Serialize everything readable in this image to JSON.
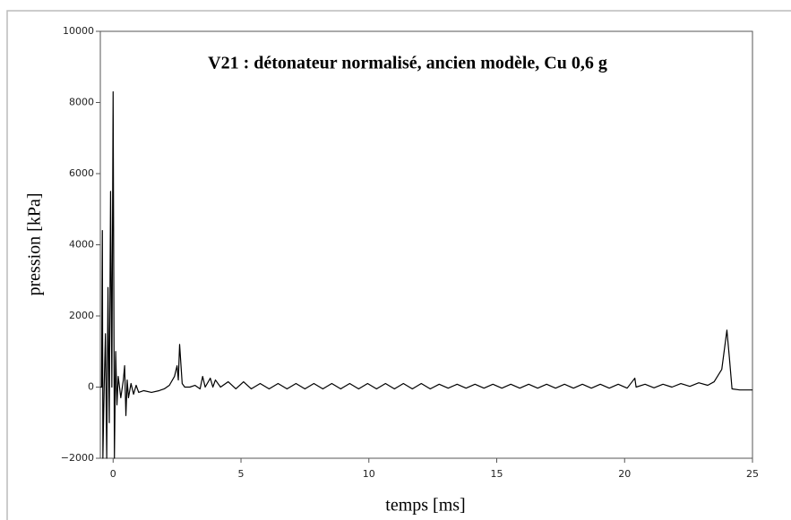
{
  "chart_data": {
    "type": "line",
    "title": "V21 : détonateur normalisé, ancien modèle, Cu 0,6 g",
    "x_label": "temps [ms]",
    "y_label": "pression [kPa]",
    "xlim": [
      -0.5,
      25
    ],
    "ylim": [
      -2000,
      10000
    ],
    "xticks": [
      0,
      5,
      10,
      15,
      20,
      25
    ],
    "yticks": [
      {
        "value": -2000,
        "label": "−2000"
      },
      0,
      2000,
      4000,
      6000,
      8000,
      10000
    ],
    "series": [
      {
        "color": "#000000",
        "x": [
          -0.5,
          -0.45,
          -0.42,
          -0.4,
          -0.35,
          -0.3,
          -0.25,
          -0.2,
          -0.15,
          -0.1,
          -0.05,
          0.0,
          0.05,
          0.1,
          0.15,
          0.2,
          0.3,
          0.4,
          0.45,
          0.5,
          0.55,
          0.6,
          0.7,
          0.8,
          0.9,
          1.0,
          1.2,
          1.5,
          1.8,
          2.0,
          2.2,
          2.4,
          2.5,
          2.55,
          2.6,
          2.7,
          2.8,
          3.0,
          3.2,
          3.4,
          3.5,
          3.6,
          3.8,
          3.9,
          4.0,
          4.2,
          4.5,
          4.8,
          5.1,
          5.4,
          5.75,
          6.1,
          6.45,
          6.8,
          7.15,
          7.5,
          7.85,
          8.2,
          8.55,
          8.9,
          9.25,
          9.6,
          9.95,
          10.3,
          10.65,
          11.0,
          11.35,
          11.7,
          12.05,
          12.4,
          12.75,
          13.1,
          13.45,
          13.8,
          14.15,
          14.5,
          14.85,
          15.2,
          15.55,
          15.9,
          16.25,
          16.6,
          16.95,
          17.3,
          17.65,
          18.0,
          18.35,
          18.7,
          19.05,
          19.4,
          19.75,
          20.1,
          20.4,
          20.45,
          20.8,
          21.15,
          21.5,
          21.85,
          22.2,
          22.55,
          22.9,
          23.25,
          23.5,
          23.8,
          24.0,
          24.1,
          24.2,
          24.5,
          25
        ],
        "values": [
          0,
          0,
          4400,
          -2000,
          0,
          1500,
          -2000,
          2800,
          -1000,
          5500,
          0,
          8300,
          -2000,
          1000,
          -500,
          300,
          -300,
          200,
          600,
          -800,
          200,
          -300,
          100,
          -200,
          50,
          -150,
          -100,
          -150,
          -100,
          -50,
          50,
          300,
          600,
          200,
          1200,
          100,
          0,
          0,
          50,
          -50,
          300,
          0,
          250,
          0,
          200,
          0,
          150,
          -50,
          150,
          -50,
          100,
          -50,
          100,
          -50,
          100,
          -50,
          100,
          -50,
          100,
          -50,
          100,
          -50,
          100,
          -50,
          100,
          -50,
          100,
          -50,
          100,
          -50,
          80,
          -30,
          80,
          -30,
          80,
          -30,
          80,
          -30,
          80,
          -30,
          80,
          -30,
          80,
          -30,
          80,
          -30,
          80,
          -30,
          80,
          -30,
          80,
          -30,
          250,
          0,
          80,
          -20,
          80,
          0,
          100,
          20,
          120,
          50,
          150,
          500,
          1600,
          800,
          -50,
          -80,
          -80
        ]
      }
    ]
  }
}
